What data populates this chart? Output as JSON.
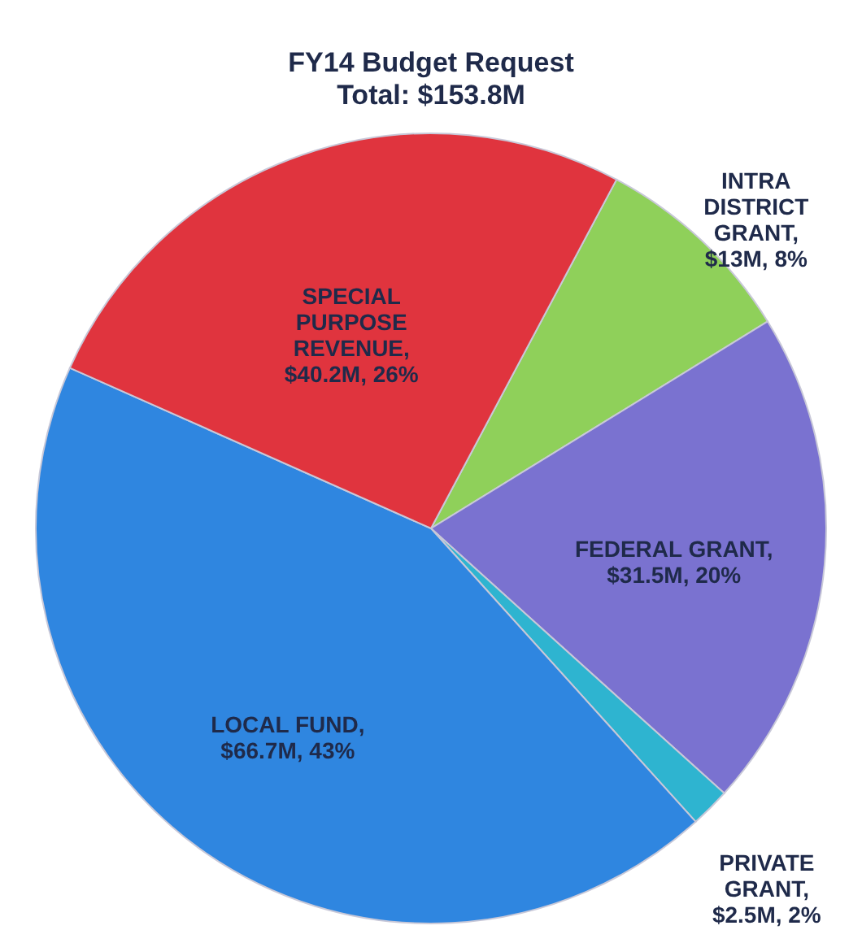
{
  "chart_data": {
    "type": "pie",
    "title": "FY14 Budget Request",
    "subtitle": "Total: $153.8M",
    "categories": [
      "INTRA DISTRICT GRANT, $13M, 8%",
      "FEDERAL GRANT, $31.5M, 20%",
      "PRIVATE GRANT, $2.5M, 2%",
      "LOCAL FUND, $66.7M, 43%",
      "SPECIAL PURPOSE REVENUE, $40.2M, 26%"
    ],
    "values": [
      13,
      31.5,
      2.5,
      66.7,
      40.2
    ],
    "colors": [
      "#8fd05a",
      "#7a72d0",
      "#2eb4d0",
      "#2f86e0",
      "#e0343e"
    ],
    "legend": false
  }
}
